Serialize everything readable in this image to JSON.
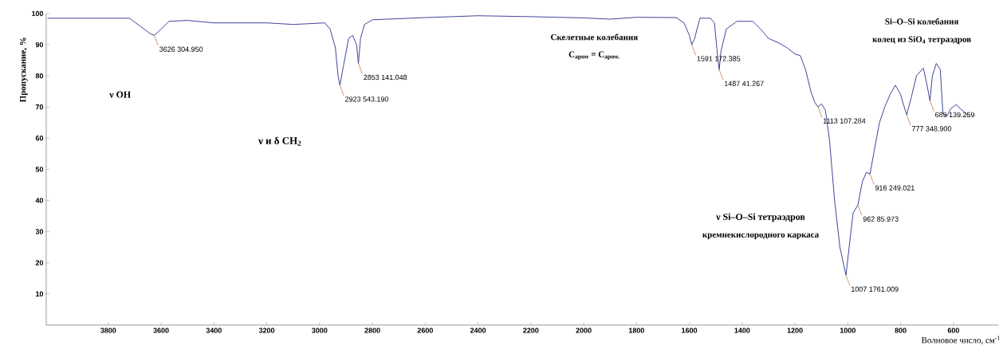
{
  "chart_data": {
    "type": "line",
    "xlabel": "Волновое число, см$^{-1}$",
    "ylabel": "Пропускание, %",
    "xlim": [
      4035,
      430
    ],
    "ylim": [
      0,
      100
    ],
    "xticks": [
      3800,
      3600,
      3400,
      3200,
      3000,
      2800,
      2600,
      2400,
      2200,
      2000,
      1800,
      1600,
      1400,
      1200,
      1000,
      800,
      600
    ],
    "yticks": [
      10,
      20,
      30,
      40,
      50,
      60,
      70,
      80,
      90,
      100
    ],
    "grid": false,
    "marker": "none",
    "line_style": "solid",
    "series": [
      {
        "color": "#2b2f8f",
        "x": [
          4030,
          3720,
          3680,
          3640,
          3626,
          3600,
          3570,
          3500,
          3400,
          3200,
          3100,
          3050,
          2980,
          2960,
          2940,
          2930,
          2923,
          2910,
          2890,
          2875,
          2860,
          2853,
          2845,
          2830,
          2800,
          2600,
          2400,
          2200,
          2000,
          1900,
          1800,
          1650,
          1620,
          1600,
          1591,
          1580,
          1560,
          1520,
          1505,
          1495,
          1487,
          1480,
          1460,
          1420,
          1360,
          1330,
          1300,
          1260,
          1230,
          1200,
          1180,
          1160,
          1140,
          1125,
          1113,
          1100,
          1085,
          1070,
          1050,
          1030,
          1007,
          995,
          980,
          962,
          945,
          930,
          916,
          900,
          880,
          860,
          840,
          820,
          800,
          790,
          777,
          760,
          740,
          714,
          700,
          689,
          680,
          665,
          650,
          640,
          625,
          610,
          589,
          575,
          560,
          545
        ],
        "values": [
          98.5,
          98.5,
          96,
          93.5,
          93,
          95,
          97.5,
          97.8,
          97,
          97,
          96.5,
          96.7,
          97,
          95,
          89,
          80,
          77,
          83,
          92,
          93,
          90,
          84,
          92,
          96.5,
          98,
          98.7,
          99.3,
          99,
          98.6,
          98.2,
          98.8,
          98.7,
          97,
          93,
          90,
          92,
          98.5,
          98.5,
          97,
          88,
          82,
          88,
          95,
          97.5,
          97.5,
          95,
          92,
          90.5,
          89,
          87,
          86.5,
          82,
          75,
          71.5,
          70,
          71,
          69,
          60,
          40,
          25,
          16,
          25,
          36,
          38.5,
          46,
          49,
          48.5,
          56,
          65,
          70,
          74,
          77,
          74,
          71,
          67.5,
          73,
          80,
          82.5,
          77,
          72,
          80,
          84,
          82,
          68,
          67,
          69.5,
          70.8,
          69.5,
          68.5,
          67
        ]
      }
    ],
    "annotations": [
      {
        "text": "3626 304.950",
        "x": 3626,
        "y": 93
      },
      {
        "text": "2923 543.190",
        "x": 2923,
        "y": 77
      },
      {
        "text": "2853 141.048",
        "x": 2853,
        "y": 84
      },
      {
        "text": "1591 172.385",
        "x": 1591,
        "y": 90
      },
      {
        "text": "1487 41.267",
        "x": 1487,
        "y": 82
      },
      {
        "text": "1113 107.284",
        "x": 1113,
        "y": 70
      },
      {
        "text": "1007 1761.009",
        "x": 1007,
        "y": 16
      },
      {
        "text": "962 85.973",
        "x": 962,
        "y": 38.5
      },
      {
        "text": "916 249.021",
        "x": 916,
        "y": 48.5
      },
      {
        "text": "777 348.900",
        "x": 777,
        "y": 67.5
      },
      {
        "text": "689 139.259",
        "x": 689,
        "y": 72
      },
      "ν OH",
      "ν и δ CH$_{2}$",
      "Скелетные колебания",
      "C$_{аром}$ = C$_{аром.}$",
      "Si–O–Si колебания",
      "колец из SiO$_{4}$ тетраэдров",
      "ν Si–O–Si тетраэдров",
      "кремнекислородного каркаса"
    ]
  }
}
